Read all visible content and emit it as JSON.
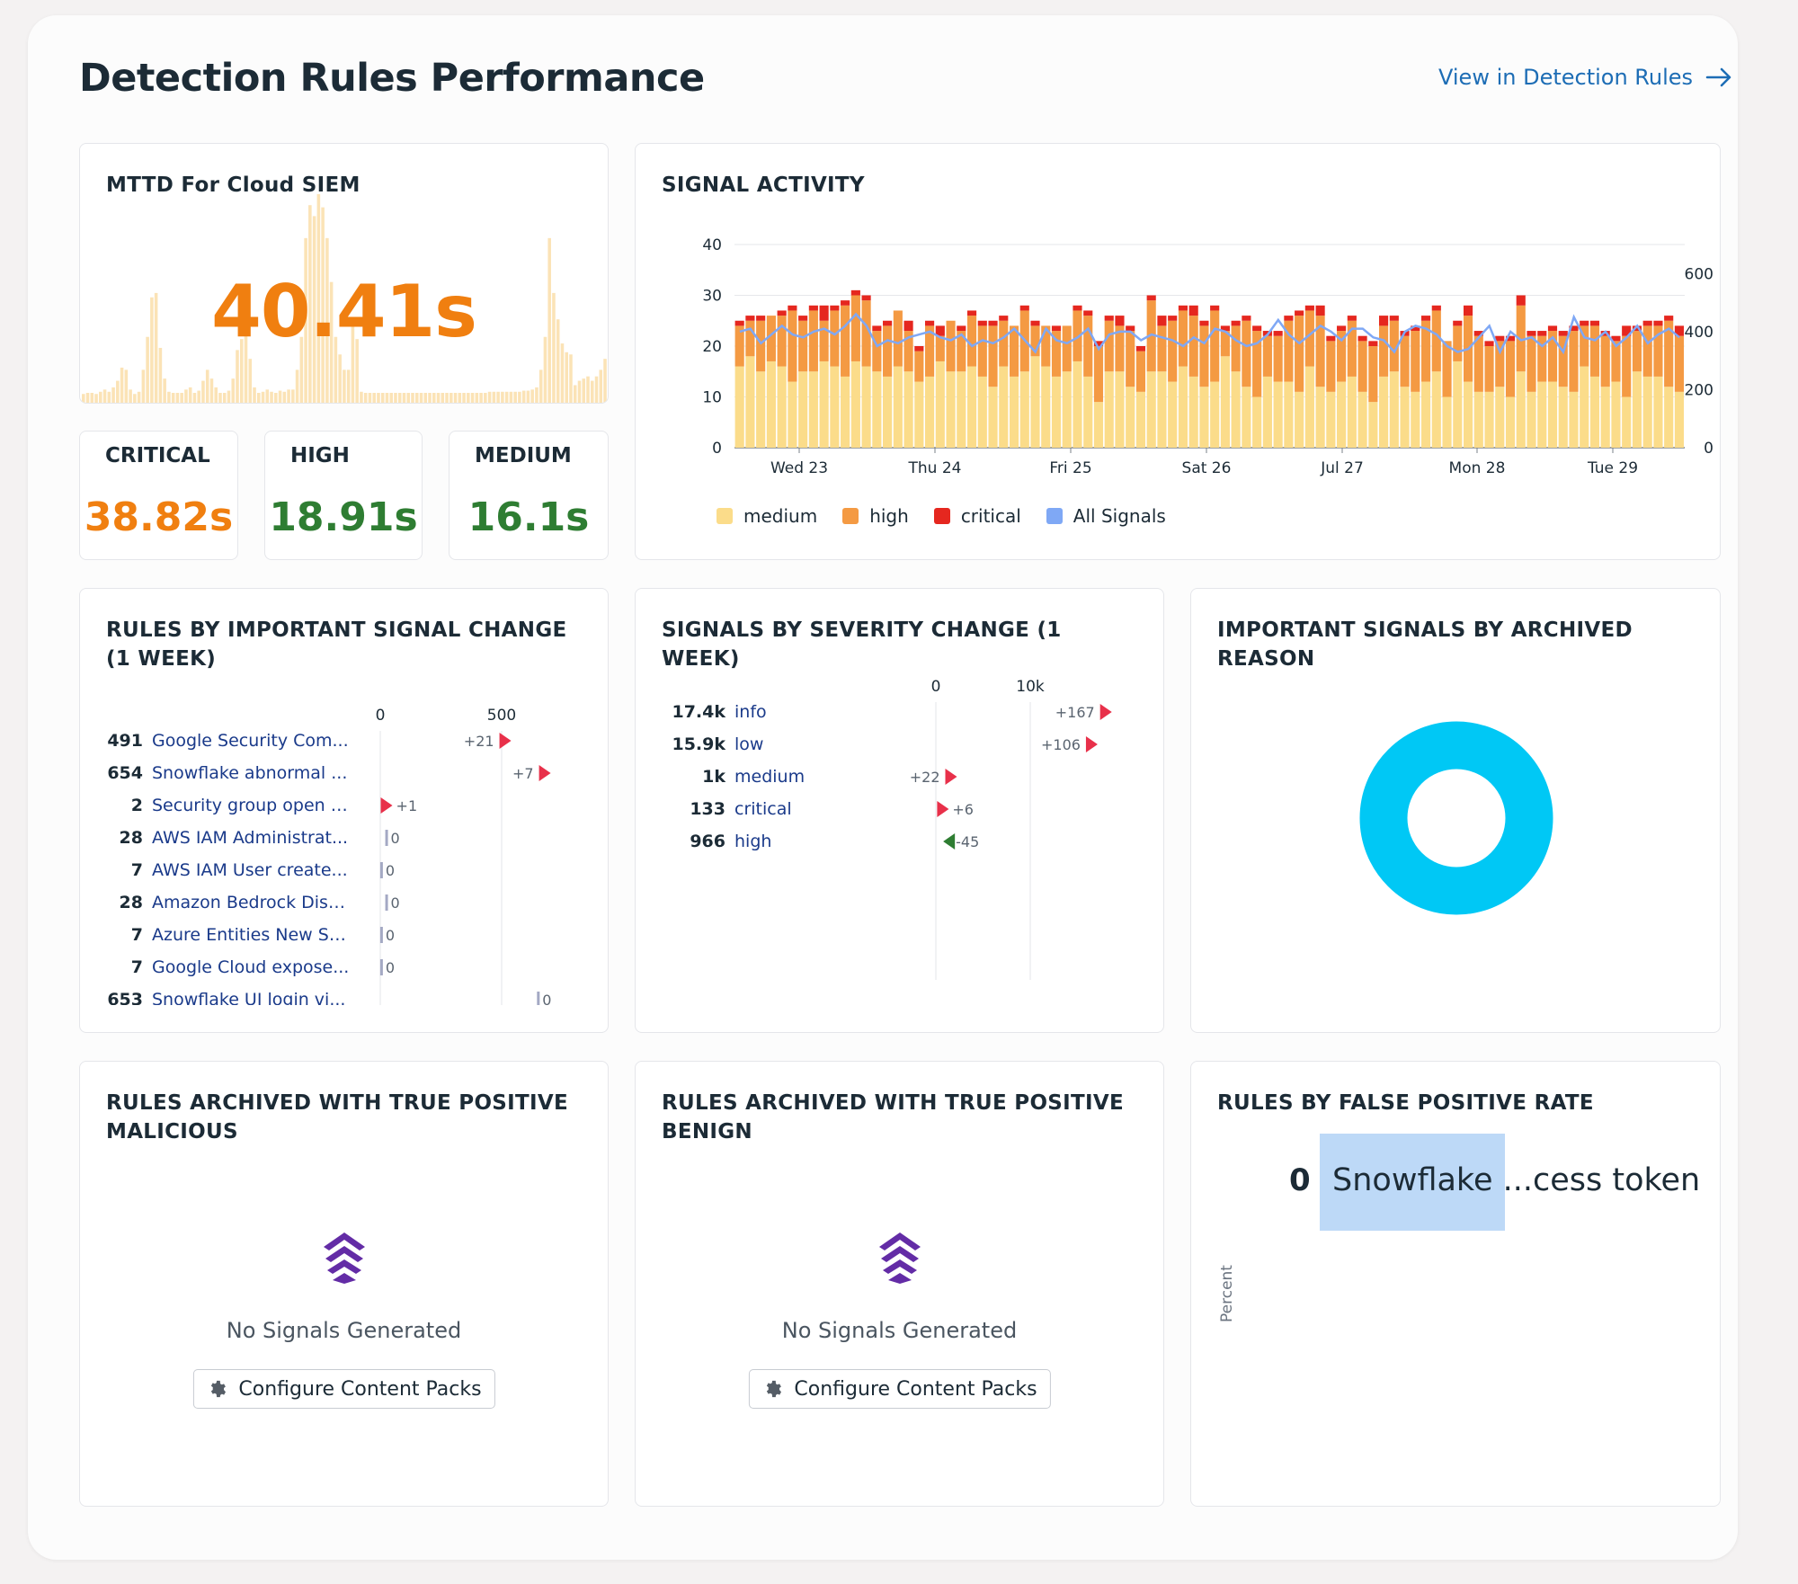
{
  "page": {
    "title": "Detection Rules Performance",
    "view_link": "View in Detection Rules"
  },
  "mttd": {
    "title": "MTTD For Cloud SIEM",
    "value": "40.41s",
    "sparkline": [
      8,
      9,
      9,
      8,
      10,
      12,
      10,
      14,
      20,
      32,
      30,
      12,
      8,
      10,
      30,
      60,
      96,
      100,
      50,
      22,
      10,
      9,
      9,
      9,
      12,
      14,
      9,
      11,
      20,
      30,
      22,
      14,
      9,
      9,
      11,
      22,
      48,
      58,
      64,
      40,
      14,
      9,
      10,
      12,
      10,
      9,
      11,
      10,
      12,
      12,
      30,
      60,
      150,
      180,
      170,
      190,
      178,
      150,
      110,
      60,
      44,
      30,
      30,
      76,
      58,
      10,
      9,
      9,
      9,
      9,
      9,
      9,
      9,
      9,
      9,
      9,
      9,
      9,
      9,
      9,
      9,
      9,
      9,
      9,
      9,
      9,
      9,
      9,
      9,
      9,
      9,
      9,
      9,
      9,
      9,
      10,
      10,
      10,
      10,
      10,
      10,
      10,
      10,
      11,
      11,
      12,
      14,
      30,
      60,
      150,
      100,
      76,
      54,
      46,
      44,
      16,
      20,
      22,
      24,
      20,
      24,
      30,
      40
    ],
    "sparkline_color": "#fbe3b6",
    "value_color": "#f07f10"
  },
  "severity_cards": [
    {
      "label": "CRITICAL",
      "value": "38.82s",
      "color": "#f07f10"
    },
    {
      "label": "HIGH",
      "value": "18.91s",
      "color": "#2e7d32"
    },
    {
      "label": "MEDIUM",
      "value": "16.1s",
      "color": "#2e7d32"
    }
  ],
  "signal_activity": {
    "title": "SIGNAL ACTIVITY",
    "y_left_ticks": [
      "40",
      "30",
      "20",
      "10",
      "0"
    ],
    "y_right_ticks": [
      "600",
      "400",
      "200",
      "0"
    ],
    "x_labels": [
      "Wed 23",
      "Thu 24",
      "Fri 25",
      "Sat 26",
      "Jul 27",
      "Mon 28",
      "Tue 29"
    ],
    "legend": [
      {
        "label": "medium",
        "color": "#fbdc8a"
      },
      {
        "label": "high",
        "color": "#f49a43"
      },
      {
        "label": "critical",
        "color": "#e5271f"
      },
      {
        "label": "All Signals",
        "color": "#7fa8f5"
      }
    ],
    "medium": [
      16,
      18,
      15,
      17,
      16,
      13,
      15,
      15,
      17,
      16,
      14,
      17,
      16,
      15,
      14,
      16,
      15,
      13,
      14,
      17,
      15,
      15,
      16,
      14,
      12,
      16,
      14,
      15,
      18,
      16,
      14,
      15,
      17,
      14,
      9,
      15,
      15,
      12,
      11,
      15,
      15,
      13,
      16,
      14,
      12,
      13,
      18,
      15,
      12,
      10,
      14,
      13,
      13,
      11,
      16,
      12,
      11,
      13,
      14,
      11,
      9,
      14,
      15,
      12,
      11,
      13,
      15,
      10,
      17,
      13,
      11,
      11,
      12,
      10,
      15,
      11,
      13,
      13,
      12,
      11,
      16,
      14,
      12,
      13,
      10,
      15,
      14,
      14,
      12,
      11
    ],
    "high": [
      8,
      7,
      10,
      9,
      10,
      14,
      10,
      12,
      8,
      11,
      14,
      13,
      13,
      8,
      10,
      11,
      8,
      6,
      10,
      5,
      10,
      8,
      10,
      10,
      12,
      9,
      10,
      12,
      6,
      8,
      9,
      9,
      10,
      12,
      11,
      10,
      9,
      11,
      8,
      14,
      9,
      12,
      11,
      12,
      12,
      14,
      5,
      9,
      13,
      13,
      8,
      9,
      12,
      15,
      11,
      14,
      10,
      10,
      11,
      10,
      11,
      10,
      10,
      10,
      12,
      12,
      12,
      11,
      7,
      13,
      11,
      9,
      9,
      11,
      13,
      11,
      9,
      10,
      10,
      12,
      8,
      10,
      10,
      8,
      12,
      8,
      10,
      10,
      13,
      11
    ],
    "critical": [
      1,
      1,
      1,
      0,
      1,
      1,
      1,
      1,
      3,
      1,
      1,
      1,
      1,
      1,
      1,
      0,
      2,
      1,
      1,
      2,
      0,
      1,
      1,
      1,
      1,
      1,
      0,
      1,
      1,
      0,
      1,
      0,
      1,
      1,
      1,
      1,
      2,
      1,
      1,
      1,
      2,
      1,
      1,
      2,
      1,
      1,
      1,
      1,
      1,
      1,
      1,
      1,
      1,
      1,
      1,
      2,
      1,
      1,
      1,
      1,
      1,
      2,
      1,
      1,
      1,
      1,
      1,
      0,
      1,
      2,
      1,
      1,
      1,
      1,
      2,
      1,
      1,
      1,
      1,
      1,
      1,
      1,
      1,
      1,
      2,
      1,
      1,
      1,
      1,
      2
    ],
    "all": [
      400,
      410,
      360,
      390,
      420,
      390,
      380,
      400,
      410,
      390,
      420,
      460,
      420,
      350,
      370,
      360,
      380,
      390,
      400,
      380,
      370,
      390,
      350,
      370,
      360,
      380,
      410,
      370,
      330,
      410,
      370,
      360,
      380,
      410,
      340,
      390,
      400,
      400,
      370,
      390,
      380,
      370,
      350,
      380,
      360,
      410,
      400,
      370,
      350,
      360,
      390,
      440,
      390,
      360,
      390,
      420,
      400,
      370,
      410,
      410,
      380,
      370,
      330,
      400,
      420,
      410,
      390,
      350,
      330,
      340,
      380,
      420,
      330,
      400,
      370,
      380,
      350,
      380,
      330,
      450,
      380,
      370,
      400,
      350,
      380,
      420,
      360,
      390,
      410,
      380
    ]
  },
  "rules_change": {
    "title": "RULES BY IMPORTANT SIGNAL CHANGE (1 WEEK)",
    "axis": [
      "0",
      "500"
    ],
    "rows": [
      {
        "count": "491",
        "name": "Google Security Com...",
        "delta": "+21",
        "dir": "up",
        "base": 491
      },
      {
        "count": "654",
        "name": "Snowflake abnormal ...",
        "delta": "+7",
        "dir": "up",
        "base": 654
      },
      {
        "count": "2",
        "name": "Security group open t...",
        "delta": "+1",
        "dir": "up",
        "base": 2
      },
      {
        "count": "28",
        "name": "AWS IAM Administrat...",
        "delta": "0",
        "dir": "flat",
        "base": 28
      },
      {
        "count": "7",
        "name": "AWS IAM User create...",
        "delta": "0",
        "dir": "flat",
        "base": 7
      },
      {
        "count": "28",
        "name": "Amazon Bedrock Disc...",
        "delta": "0",
        "dir": "flat",
        "base": 28
      },
      {
        "count": "7",
        "name": "Azure Entities New Se...",
        "delta": "0",
        "dir": "flat",
        "base": 7
      },
      {
        "count": "7",
        "name": "Google Cloud expose...",
        "delta": "0",
        "dir": "flat",
        "base": 7
      },
      {
        "count": "653",
        "name": "Snowflake UI login vi...",
        "delta": "0",
        "dir": "flat",
        "base": 653
      }
    ]
  },
  "severity_change": {
    "title": "SIGNALS BY SEVERITY CHANGE (1 WEEK)",
    "axis": [
      "0",
      "10k"
    ],
    "rows": [
      {
        "count": "17.4k",
        "name": "info",
        "delta": "+167",
        "dir": "up",
        "base": 17400
      },
      {
        "count": "15.9k",
        "name": "low",
        "delta": "+106",
        "dir": "up",
        "base": 15900
      },
      {
        "count": "1k",
        "name": "medium",
        "delta": "+22",
        "dir": "up",
        "base": 1000
      },
      {
        "count": "133",
        "name": "critical",
        "delta": "+6",
        "dir": "up",
        "base": 133
      },
      {
        "count": "966",
        "name": "high",
        "delta": "-45",
        "dir": "down",
        "base": 966
      }
    ]
  },
  "archived_reason": {
    "title": "IMPORTANT SIGNALS BY ARCHIVED REASON",
    "donut_color": "#00c8f5"
  },
  "archived_malicious": {
    "title": "RULES ARCHIVED WITH TRUE POSITIVE MALICIOUS",
    "empty_text": "No Signals Generated",
    "button": "Configure Content Packs"
  },
  "archived_benign": {
    "title": "RULES ARCHIVED WITH TRUE POSITIVE BENIGN",
    "empty_text": "No Signals Generated",
    "button": "Configure Content Packs"
  },
  "false_positive": {
    "title": "RULES BY FALSE POSITIVE RATE",
    "value": "0",
    "rule_name": "Snowflake ...cess token",
    "axis_label": "Percent"
  }
}
